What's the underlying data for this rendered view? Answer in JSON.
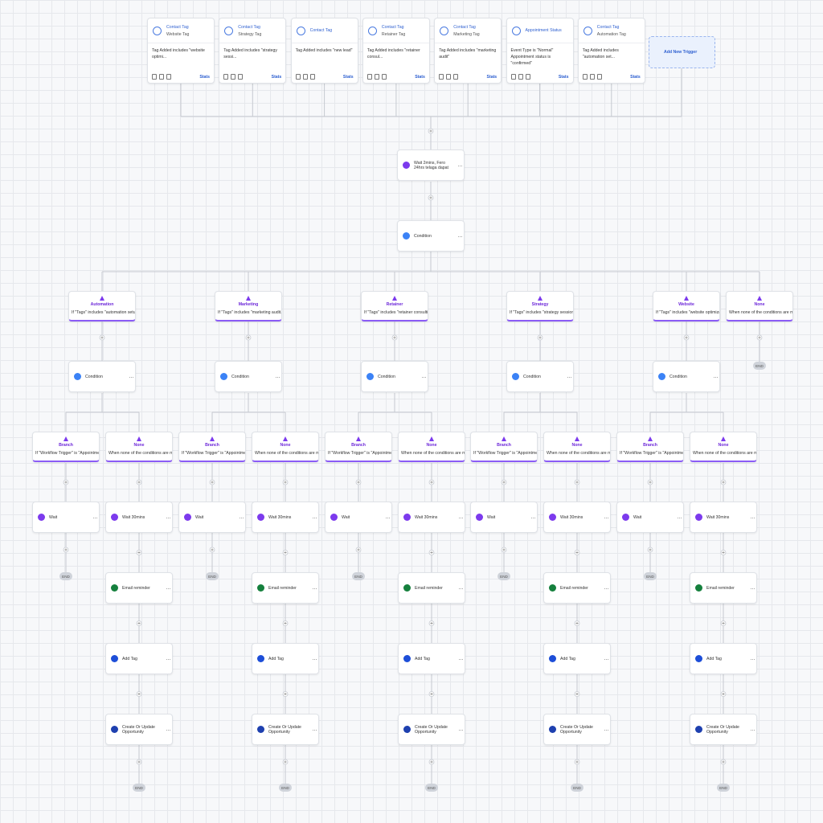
{
  "triggers": [
    {
      "title": "Contact Tag",
      "subtitle": "Website Tag",
      "description": [
        "Tag Added includes \"website optimi..."
      ],
      "stats": "Stats"
    },
    {
      "title": "Contact Tag",
      "subtitle": "Strategy Tag",
      "description": [
        "Tag Added includes \"strategy sessi..."
      ],
      "stats": "Stats"
    },
    {
      "title": "Contact Tag",
      "description": [
        "Tag Added includes \"new lead\""
      ],
      "stats": "Stats"
    },
    {
      "title": "Contact Tag",
      "subtitle": "Retainer Tag",
      "description": [
        "Tag Added includes \"retainer consul..."
      ],
      "stats": "Stats"
    },
    {
      "title": "Contact Tag",
      "subtitle": "Marketing Tag",
      "description": [
        "Tag Added includes \"marketing audit\""
      ],
      "stats": "Stats"
    },
    {
      "title": "Appointment Status",
      "description": [
        "Event Type is \"Normal\"",
        "Appointment status is \"confirmed\""
      ],
      "stats": "Stats"
    },
    {
      "title": "Contact Tag",
      "subtitle": "Automation Tag",
      "description": [
        "Tag Added includes \"automation set..."
      ],
      "stats": "Stats"
    }
  ],
  "add_trigger": "Add New Trigger",
  "wait": "Wait 2mins, Fero 24hrs telaga dapat",
  "condition": "Condition",
  "branches": [
    {
      "name": "Automation",
      "rule": "If \"Tags\" includes \"automation setup...\"",
      "condition": "Condition",
      "paths": [
        {
          "name": "Branch",
          "rule": "If \"Workflow Trigger\" is \"Appointment...",
          "steps": [
            "Wait"
          ],
          "end": "END"
        },
        {
          "name": "None",
          "rule": "When none of the conditions are met",
          "steps": [
            "Wait 30mins",
            "Email reminder",
            "Add Tag",
            "Create Or Update Opportunity"
          ],
          "end": "END"
        }
      ]
    },
    {
      "name": "Marketing",
      "rule": "If \"Tags\" includes \"marketing audit...\"",
      "condition": "Condition",
      "paths": [
        {
          "name": "Branch",
          "rule": "If \"Workflow Trigger\" is \"Appointment...",
          "steps": [
            "Wait"
          ],
          "end": "END"
        },
        {
          "name": "None",
          "rule": "When none of the conditions are met",
          "steps": [
            "Wait 30mins",
            "Email reminder",
            "Add Tag",
            "Create Or Update Opportunity"
          ],
          "end": "END"
        }
      ]
    },
    {
      "name": "Retainer",
      "rule": "If \"Tags\" includes \"retainer consulting\"",
      "condition": "Condition",
      "paths": [
        {
          "name": "Branch",
          "rule": "If \"Workflow Trigger\" is \"Appointment...",
          "steps": [
            "Wait"
          ],
          "end": "END"
        },
        {
          "name": "None",
          "rule": "When none of the conditions are met",
          "steps": [
            "Wait 30mins",
            "Email reminder",
            "Add Tag",
            "Create Or Update Opportunity"
          ],
          "end": "END"
        }
      ]
    },
    {
      "name": "Strategy",
      "rule": "If \"Tags\" includes \"strategy session\"",
      "condition": "Condition",
      "paths": [
        {
          "name": "Branch",
          "rule": "If \"Workflow Trigger\" is \"Appointment...",
          "steps": [
            "Wait"
          ],
          "end": "END"
        },
        {
          "name": "None",
          "rule": "When none of the conditions are met",
          "steps": [
            "Wait 30mins",
            "Email reminder",
            "Add Tag",
            "Create Or Update Opportunity"
          ],
          "end": "END"
        }
      ]
    },
    {
      "name": "Website",
      "rule": "If \"Tags\" includes \"website optimizat...",
      "condition": "Condition",
      "paths": [
        {
          "name": "Branch",
          "rule": "If \"Workflow Trigger\" is \"Appointment...",
          "steps": [
            "Wait"
          ],
          "end": "END"
        },
        {
          "name": "None",
          "rule": "When none of the conditions are met",
          "steps": [
            "Wait 30mins",
            "Email reminder",
            "Add Tag",
            "Create Or Update Opportunity"
          ],
          "end": "END"
        }
      ]
    },
    {
      "name": "None",
      "rule": "When none of the conditions are met",
      "end": "END"
    }
  ]
}
